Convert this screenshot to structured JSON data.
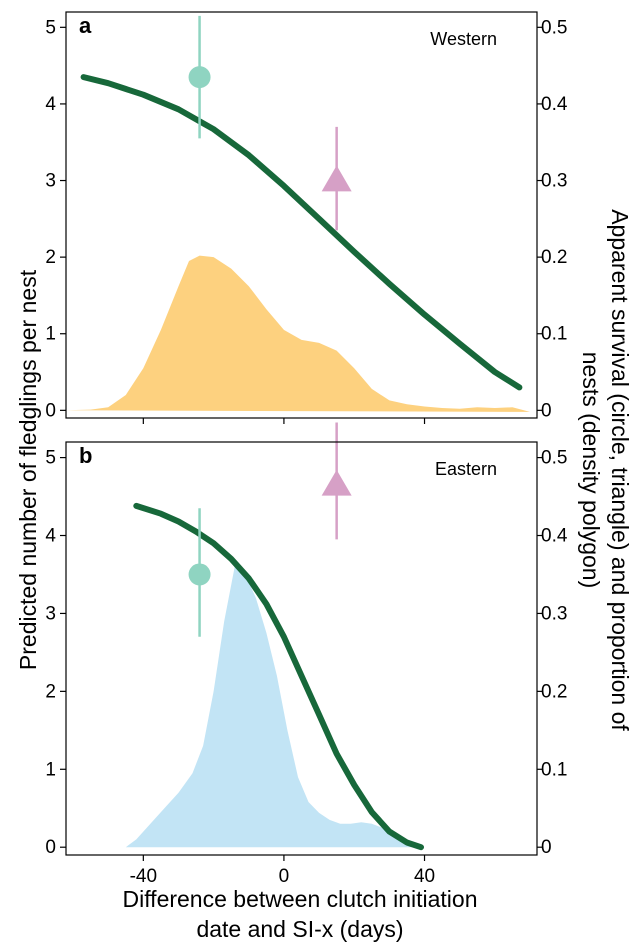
{
  "chart_data": [
    {
      "type": "line",
      "panel_letter": "a",
      "region_label": "Western",
      "x_ticks": [
        -40,
        0,
        40
      ],
      "y_left_ticks": [
        0,
        1,
        2,
        3,
        4,
        5
      ],
      "y_right_ticks": [
        "0",
        "0.1",
        "0.2",
        "0.3",
        "0.4",
        "0.5"
      ],
      "xlim": [
        -62,
        72
      ],
      "ylim_left": [
        -0.1,
        5.2
      ],
      "ylim_right": [
        -0.01,
        0.52
      ],
      "x_tick_labels_visible": false,
      "grid": false,
      "fledglings_curve": {
        "color": "#17683a",
        "x": [
          -57,
          -50,
          -40,
          -30,
          -20,
          -10,
          0,
          10,
          20,
          30,
          40,
          50,
          60,
          67
        ],
        "y": [
          4.35,
          4.27,
          4.12,
          3.93,
          3.67,
          3.33,
          2.93,
          2.5,
          2.07,
          1.65,
          1.25,
          0.87,
          0.5,
          0.3
        ]
      },
      "density_polygon": {
        "color": "#fdd17f",
        "x": [
          -62,
          -55,
          -50,
          -45,
          -40,
          -35,
          -30,
          -27,
          -24,
          -20,
          -15,
          -10,
          -5,
          0,
          5,
          10,
          15,
          20,
          25,
          30,
          35,
          40,
          45,
          50,
          55,
          60,
          65,
          70
        ],
        "y": [
          0.0,
          0.01,
          0.04,
          0.2,
          0.55,
          1.05,
          1.62,
          1.95,
          2.02,
          2.0,
          1.85,
          1.62,
          1.32,
          1.05,
          0.92,
          0.88,
          0.78,
          0.55,
          0.28,
          0.13,
          0.08,
          0.05,
          0.03,
          0.02,
          0.04,
          0.03,
          0.04,
          -0.02
        ]
      },
      "apparent_survival": [
        {
          "marker": "circle",
          "color": "#8fd4c1",
          "x": -24,
          "y": 0.435,
          "ci": [
            0.355,
            0.515
          ]
        },
        {
          "marker": "triangle",
          "color": "#d6a0c6",
          "x": 15,
          "y": 0.3,
          "ci": [
            0.235,
            0.37
          ]
        }
      ]
    },
    {
      "type": "line",
      "panel_letter": "b",
      "region_label": "Eastern",
      "x_ticks": [
        -40,
        0,
        40
      ],
      "x_tick_labels": [
        "-40",
        "0",
        "40"
      ],
      "y_left_ticks": [
        0,
        1,
        2,
        3,
        4,
        5
      ],
      "y_right_ticks": [
        "0",
        "0.1",
        "0.2",
        "0.3",
        "0.4",
        "0.5"
      ],
      "xlim": [
        -62,
        72
      ],
      "ylim_left": [
        -0.1,
        5.2
      ],
      "ylim_right": [
        -0.01,
        0.52
      ],
      "grid": false,
      "fledglings_curve": {
        "color": "#17683a",
        "x": [
          -42,
          -35,
          -30,
          -25,
          -20,
          -15,
          -10,
          -5,
          0,
          5,
          10,
          15,
          20,
          25,
          30,
          35,
          39
        ],
        "y": [
          4.38,
          4.28,
          4.18,
          4.05,
          3.9,
          3.7,
          3.45,
          3.12,
          2.7,
          2.2,
          1.7,
          1.2,
          0.8,
          0.45,
          0.2,
          0.06,
          0.0
        ]
      },
      "density_polygon": {
        "color": "#c2e4f5",
        "x": [
          -45,
          -42,
          -38,
          -34,
          -30,
          -26,
          -23,
          -20,
          -17,
          -14,
          -11,
          -8,
          -5,
          -2,
          1,
          4,
          7,
          10,
          13,
          16,
          19,
          22,
          25,
          28,
          31,
          34,
          37,
          40
        ],
        "y": [
          0.0,
          0.1,
          0.3,
          0.5,
          0.7,
          0.95,
          1.3,
          2.0,
          2.9,
          3.6,
          3.5,
          3.2,
          2.75,
          2.2,
          1.5,
          0.9,
          0.58,
          0.44,
          0.35,
          0.3,
          0.3,
          0.32,
          0.3,
          0.25,
          0.18,
          0.1,
          0.04,
          0.0
        ]
      },
      "apparent_survival": [
        {
          "marker": "circle",
          "color": "#8fd4c1",
          "x": -24,
          "y": 0.35,
          "ci": [
            0.27,
            0.435
          ]
        },
        {
          "marker": "triangle",
          "color": "#d6a0c6",
          "x": 15,
          "y": 0.465,
          "ci": [
            0.395,
            0.545
          ]
        }
      ]
    }
  ],
  "axis_titles": {
    "x_line1": "Difference between clutch initiation",
    "x_line2": "date and SI-x (days)",
    "y_left": "Predicted number of fledglings per nest",
    "y_right_line1": "Apparent survival (circle, triangle) and proportion of",
    "y_right_line2": "nests (density polygon)"
  }
}
